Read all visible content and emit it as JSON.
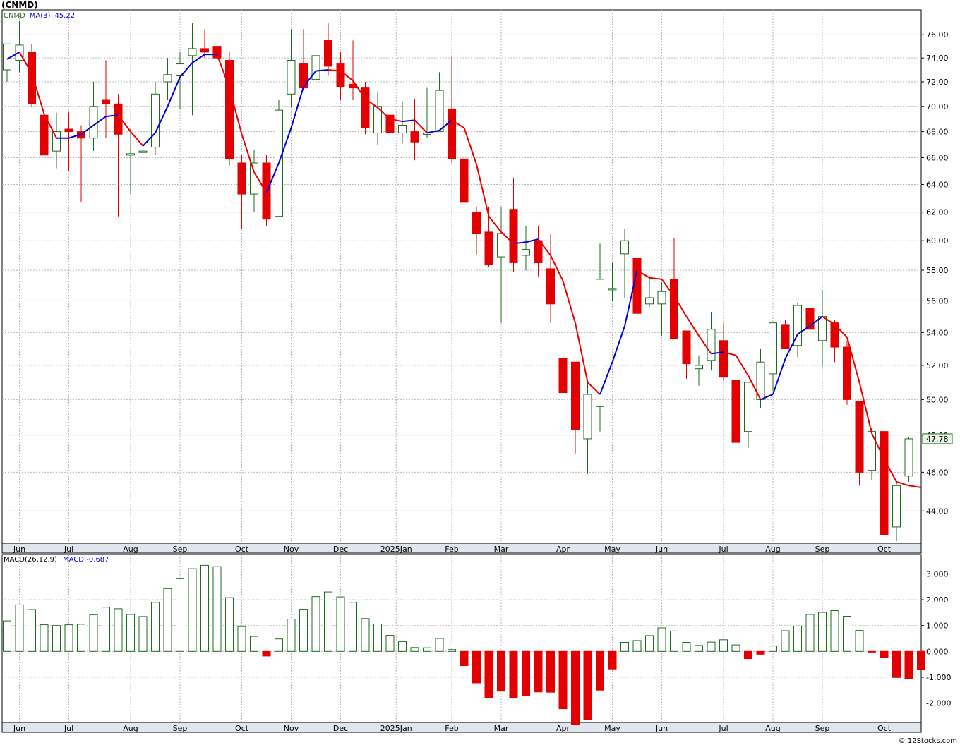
{
  "title": "(CNMD)",
  "footer": "© 12Stocks.com",
  "colors": {
    "up": "#1f6b1f",
    "down": "#e40000",
    "ma_up": "#0000dd",
    "ma_down": "#ee0000",
    "grid": "#b8b8b8",
    "last_price_box": "#1f6b1f"
  },
  "chart_data": [
    {
      "type": "candlestick",
      "title": "(CNMD)",
      "legend": [
        {
          "label": "CNMD",
          "color": "#1f6b1f"
        },
        {
          "label": "MA(3)",
          "color": "#0000dd"
        },
        {
          "label": "45.22",
          "color": "#0000dd"
        }
      ],
      "last_price_label": "47.78",
      "yscale": "log",
      "ylim": [
        42.4,
        78.2
      ],
      "yticks": [
        "44.00",
        "46.00",
        "48.00",
        "50.00",
        "52.00",
        "54.00",
        "56.00",
        "58.00",
        "60.00",
        "62.00",
        "64.00",
        "66.00",
        "68.00",
        "70.00",
        "72.00",
        "74.00",
        "76.00"
      ],
      "grid": true,
      "x_month_labels": [
        {
          "label": "Jun",
          "i": 1
        },
        {
          "label": "Jul",
          "i": 5
        },
        {
          "label": "Aug",
          "i": 10
        },
        {
          "label": "Sep",
          "i": 14
        },
        {
          "label": "Oct",
          "i": 19
        },
        {
          "label": "Nov",
          "i": 23
        },
        {
          "label": "Dec",
          "i": 27
        },
        {
          "label": "2025Jan",
          "i": 31.5
        },
        {
          "label": "Feb",
          "i": 36
        },
        {
          "label": "Mar",
          "i": 40
        },
        {
          "label": "Apr",
          "i": 45
        },
        {
          "label": "May",
          "i": 49
        },
        {
          "label": "Jun",
          "i": 53
        },
        {
          "label": "Jul",
          "i": 58
        },
        {
          "label": "Aug",
          "i": 62
        },
        {
          "label": "Sep",
          "i": 66
        },
        {
          "label": "Oct",
          "i": 71
        }
      ],
      "candles": [
        {
          "o": 73.0,
          "h": 75.0,
          "l": 72.0,
          "c": 75.2
        },
        {
          "o": 73.8,
          "h": 77.2,
          "l": 72.8,
          "c": 75.1
        },
        {
          "o": 74.5,
          "h": 75.2,
          "l": 70.0,
          "c": 70.2
        },
        {
          "o": 69.3,
          "h": 70.2,
          "l": 65.5,
          "c": 66.2
        },
        {
          "o": 66.5,
          "h": 69.5,
          "l": 65.2,
          "c": 68.0
        },
        {
          "o": 68.2,
          "h": 69.5,
          "l": 65.0,
          "c": 68.0
        },
        {
          "o": 68.0,
          "h": 68.5,
          "l": 62.7,
          "c": 67.5
        },
        {
          "o": 67.5,
          "h": 72.0,
          "l": 66.5,
          "c": 70.0
        },
        {
          "o": 70.5,
          "h": 73.8,
          "l": 67.5,
          "c": 70.2
        },
        {
          "o": 70.2,
          "h": 71.0,
          "l": 61.7,
          "c": 67.8
        },
        {
          "o": 66.3,
          "h": 68.2,
          "l": 63.3,
          "c": 66.3
        },
        {
          "o": 66.5,
          "h": 68.3,
          "l": 64.7,
          "c": 66.5
        },
        {
          "o": 66.8,
          "h": 72.0,
          "l": 66.2,
          "c": 71.0
        },
        {
          "o": 72.0,
          "h": 74.0,
          "l": 70.5,
          "c": 72.6
        },
        {
          "o": 72.5,
          "h": 74.5,
          "l": 69.8,
          "c": 73.5
        },
        {
          "o": 74.2,
          "h": 77.0,
          "l": 69.3,
          "c": 74.8
        },
        {
          "o": 74.8,
          "h": 76.5,
          "l": 74.0,
          "c": 74.5
        },
        {
          "o": 75.0,
          "h": 76.5,
          "l": 73.5,
          "c": 74.0
        },
        {
          "o": 73.8,
          "h": 74.5,
          "l": 65.4,
          "c": 65.9
        },
        {
          "o": 65.6,
          "h": 66.2,
          "l": 60.8,
          "c": 63.3
        },
        {
          "o": 63.3,
          "h": 66.6,
          "l": 62.0,
          "c": 65.6
        },
        {
          "o": 65.6,
          "h": 66.2,
          "l": 61.0,
          "c": 61.5
        },
        {
          "o": 61.7,
          "h": 70.5,
          "l": 61.7,
          "c": 69.7
        },
        {
          "o": 71.0,
          "h": 76.5,
          "l": 69.9,
          "c": 73.8
        },
        {
          "o": 73.5,
          "h": 76.5,
          "l": 71.5,
          "c": 71.5
        },
        {
          "o": 72.2,
          "h": 75.5,
          "l": 68.8,
          "c": 74.2
        },
        {
          "o": 75.5,
          "h": 77.0,
          "l": 72.5,
          "c": 73.3
        },
        {
          "o": 73.5,
          "h": 74.5,
          "l": 70.5,
          "c": 71.6
        },
        {
          "o": 71.8,
          "h": 75.5,
          "l": 70.5,
          "c": 71.5
        },
        {
          "o": 71.5,
          "h": 72.0,
          "l": 67.8,
          "c": 68.3
        },
        {
          "o": 67.9,
          "h": 71.2,
          "l": 67.0,
          "c": 70.0
        },
        {
          "o": 69.3,
          "h": 70.7,
          "l": 65.5,
          "c": 67.9
        },
        {
          "o": 67.9,
          "h": 70.4,
          "l": 67.1,
          "c": 68.5
        },
        {
          "o": 68.0,
          "h": 70.6,
          "l": 65.8,
          "c": 67.2
        },
        {
          "o": 67.9,
          "h": 71.5,
          "l": 67.5,
          "c": 67.9
        },
        {
          "o": 68.0,
          "h": 72.8,
          "l": 68.0,
          "c": 71.3
        },
        {
          "o": 69.8,
          "h": 74.1,
          "l": 65.6,
          "c": 65.9
        },
        {
          "o": 65.9,
          "h": 66.1,
          "l": 62.0,
          "c": 62.7
        },
        {
          "o": 62.0,
          "h": 62.4,
          "l": 59.0,
          "c": 60.5
        },
        {
          "o": 60.6,
          "h": 62.4,
          "l": 58.2,
          "c": 58.4
        },
        {
          "o": 58.9,
          "h": 62.4,
          "l": 54.6,
          "c": 60.5
        },
        {
          "o": 62.2,
          "h": 64.5,
          "l": 57.9,
          "c": 58.5
        },
        {
          "o": 59.0,
          "h": 61.0,
          "l": 58.0,
          "c": 59.4
        },
        {
          "o": 60.0,
          "h": 61.0,
          "l": 57.6,
          "c": 58.5
        },
        {
          "o": 58.1,
          "h": 60.5,
          "l": 54.6,
          "c": 55.8
        },
        {
          "o": 52.4,
          "h": 52.4,
          "l": 50.0,
          "c": 50.4
        },
        {
          "o": 52.2,
          "h": 52.2,
          "l": 47.0,
          "c": 48.3
        },
        {
          "o": 47.8,
          "h": 51.1,
          "l": 45.9,
          "c": 50.3
        },
        {
          "o": 49.6,
          "h": 59.8,
          "l": 48.2,
          "c": 57.4
        },
        {
          "o": 56.8,
          "h": 58.5,
          "l": 56.0,
          "c": 56.8
        },
        {
          "o": 59.1,
          "h": 60.8,
          "l": 56.2,
          "c": 60.0
        },
        {
          "o": 58.8,
          "h": 60.5,
          "l": 54.3,
          "c": 55.2
        },
        {
          "o": 55.8,
          "h": 57.6,
          "l": 55.6,
          "c": 56.2
        },
        {
          "o": 55.8,
          "h": 57.2,
          "l": 53.8,
          "c": 56.6
        },
        {
          "o": 57.4,
          "h": 60.2,
          "l": 53.6,
          "c": 53.6
        },
        {
          "o": 54.1,
          "h": 54.1,
          "l": 51.2,
          "c": 52.1
        },
        {
          "o": 51.8,
          "h": 52.6,
          "l": 50.8,
          "c": 52.0
        },
        {
          "o": 52.3,
          "h": 55.3,
          "l": 51.7,
          "c": 54.2
        },
        {
          "o": 53.5,
          "h": 54.6,
          "l": 51.1,
          "c": 51.3
        },
        {
          "o": 51.1,
          "h": 51.3,
          "l": 47.6,
          "c": 47.6
        },
        {
          "o": 48.2,
          "h": 51.0,
          "l": 47.3,
          "c": 51.0
        },
        {
          "o": 50.0,
          "h": 53.0,
          "l": 49.5,
          "c": 52.2
        },
        {
          "o": 51.5,
          "h": 54.5,
          "l": 50.5,
          "c": 54.6
        },
        {
          "o": 54.5,
          "h": 54.8,
          "l": 53.0,
          "c": 53.0
        },
        {
          "o": 53.2,
          "h": 55.9,
          "l": 52.5,
          "c": 55.7
        },
        {
          "o": 55.5,
          "h": 55.7,
          "l": 54.2,
          "c": 54.2
        },
        {
          "o": 53.5,
          "h": 56.7,
          "l": 51.9,
          "c": 55.0
        },
        {
          "o": 54.6,
          "h": 54.8,
          "l": 52.2,
          "c": 53.1
        },
        {
          "o": 53.1,
          "h": 53.5,
          "l": 49.7,
          "c": 50.0
        },
        {
          "o": 49.9,
          "h": 49.9,
          "l": 45.3,
          "c": 46.0
        },
        {
          "o": 46.1,
          "h": 48.4,
          "l": 45.6,
          "c": 48.2
        },
        {
          "o": 48.2,
          "h": 48.4,
          "l": 42.8,
          "c": 42.8
        },
        {
          "o": 43.2,
          "h": 45.5,
          "l": 42.5,
          "c": 45.3
        },
        {
          "o": 45.8,
          "h": 47.9,
          "l": 45.5,
          "c": 47.8
        }
      ],
      "ma3": [
        73.9,
        74.5,
        72.7,
        69.4,
        67.5,
        67.5,
        67.8,
        68.5,
        69.2,
        69.3,
        68.0,
        66.9,
        67.9,
        70.0,
        72.4,
        73.6,
        74.3,
        74.3,
        71.5,
        67.8,
        64.9,
        63.4,
        65.6,
        68.3,
        71.6,
        72.9,
        73.0,
        72.9,
        72.1,
        70.6,
        69.9,
        69.0,
        68.8,
        68.9,
        67.9,
        68.1,
        68.9,
        68.3,
        65.5,
        61.7,
        60.6,
        59.8,
        59.9,
        60.1,
        59.0,
        57.3,
        54.6,
        51.0,
        50.3,
        52.2,
        54.4,
        58.0,
        57.5,
        57.4,
        56.3,
        55.0,
        53.8,
        52.7,
        52.8,
        52.6,
        51.4,
        50.0,
        50.3,
        52.4,
        53.9,
        54.4,
        55.0,
        54.5,
        53.7,
        51.0,
        48.1,
        46.7,
        45.5,
        45.3,
        45.2
      ]
    },
    {
      "type": "bar",
      "title": "MACD(26,12,9)",
      "legend": [
        {
          "label": "MACD(26,12,9)",
          "color": "#000000"
        },
        {
          "label": "MACD:-0.687",
          "color": "#0000dd"
        }
      ],
      "ylim": [
        -2.75,
        3.75
      ],
      "yticks": [
        "-2.000",
        "-1.000",
        "0.000",
        "1.000",
        "2.000",
        "3.000"
      ],
      "grid": true,
      "values": [
        1.18,
        1.8,
        1.62,
        1.03,
        1.0,
        1.03,
        1.05,
        1.42,
        1.71,
        1.65,
        1.43,
        1.35,
        1.9,
        2.43,
        2.83,
        3.2,
        3.33,
        3.28,
        2.08,
        0.96,
        0.58,
        -0.18,
        0.48,
        1.25,
        1.63,
        2.12,
        2.3,
        2.11,
        1.9,
        1.27,
        1.06,
        0.62,
        0.38,
        0.15,
        0.14,
        0.5,
        0.07,
        -0.55,
        -1.22,
        -1.78,
        -1.54,
        -1.79,
        -1.72,
        -1.57,
        -1.58,
        -2.22,
        -2.82,
        -2.63,
        -1.5,
        -0.68,
        0.35,
        0.42,
        0.61,
        0.91,
        0.79,
        0.35,
        0.23,
        0.36,
        0.45,
        0.25,
        -0.28,
        -0.11,
        0.21,
        0.8,
        0.98,
        1.43,
        1.51,
        1.58,
        1.36,
        0.81,
        -0.02,
        -0.25,
        -1.01,
        -1.07,
        -0.69
      ]
    }
  ]
}
